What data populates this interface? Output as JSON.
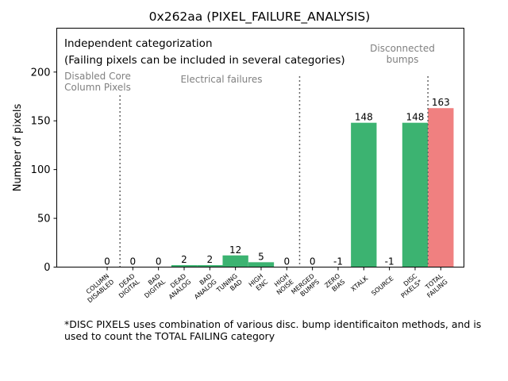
{
  "chart_data": {
    "type": "bar",
    "title": "0x262aa (PIXEL_FAILURE_ANALYSIS)",
    "xlabel": "",
    "ylabel": "Number of pixels",
    "ylim": [
      0,
      245
    ],
    "yticks": [
      0,
      50,
      100,
      150,
      200
    ],
    "categories": [
      [
        "COLUMN",
        "DISABLED"
      ],
      [
        "DEAD",
        "DIGITAL"
      ],
      [
        "BAD",
        "DIGITAL"
      ],
      [
        "DEAD",
        "ANALOG"
      ],
      [
        "BAD",
        "ANALOG"
      ],
      [
        "TUNING",
        "BAD"
      ],
      [
        "HIGH",
        "ENC"
      ],
      [
        "HIGH",
        "NOISE"
      ],
      [
        "MERGED",
        "BUMPS"
      ],
      [
        "ZERO",
        "BIAS"
      ],
      [
        "XTALK"
      ],
      [
        "SOURCE"
      ],
      [
        "DISC",
        "PIXELS*"
      ],
      [
        "TOTAL",
        "FAILING"
      ]
    ],
    "values": [
      0,
      0,
      0,
      2,
      2,
      12,
      5,
      0,
      0,
      -1,
      148,
      -1,
      148,
      163
    ],
    "value_labels": [
      "0",
      "0",
      "0",
      "2",
      "2",
      "12",
      "5",
      "0",
      "0",
      "-1",
      "148",
      "-1",
      "148",
      "163"
    ],
    "bar_colors": [
      "#3cb371",
      "#3cb371",
      "#3cb371",
      "#3cb371",
      "#3cb371",
      "#3cb371",
      "#3cb371",
      "#3cb371",
      "#3cb371",
      "#3cb371",
      "#3cb371",
      "#3cb371",
      "#3cb371",
      "#f08080"
    ],
    "separators_after_index": [
      0,
      7,
      12
    ],
    "annotations": {
      "heading_line1": "Independent categorization",
      "heading_line2": "(Failing pixels can be included in several categories)",
      "group_disabled_core": [
        "Disabled Core",
        "Column Pixels"
      ],
      "group_electrical": [
        "Electrical failures"
      ],
      "group_disconnected": [
        "Disconnected",
        "bumps"
      ]
    },
    "grid": false
  },
  "footnote": {
    "line1": "*DISC PIXELS uses combination of various disc. bump identificaiton methods, and is",
    "line2": "used to count the TOTAL FAILING category"
  },
  "colors": {
    "bar_main": "#3cb371",
    "bar_total": "#f08080",
    "annotation_gray": "#808080"
  }
}
